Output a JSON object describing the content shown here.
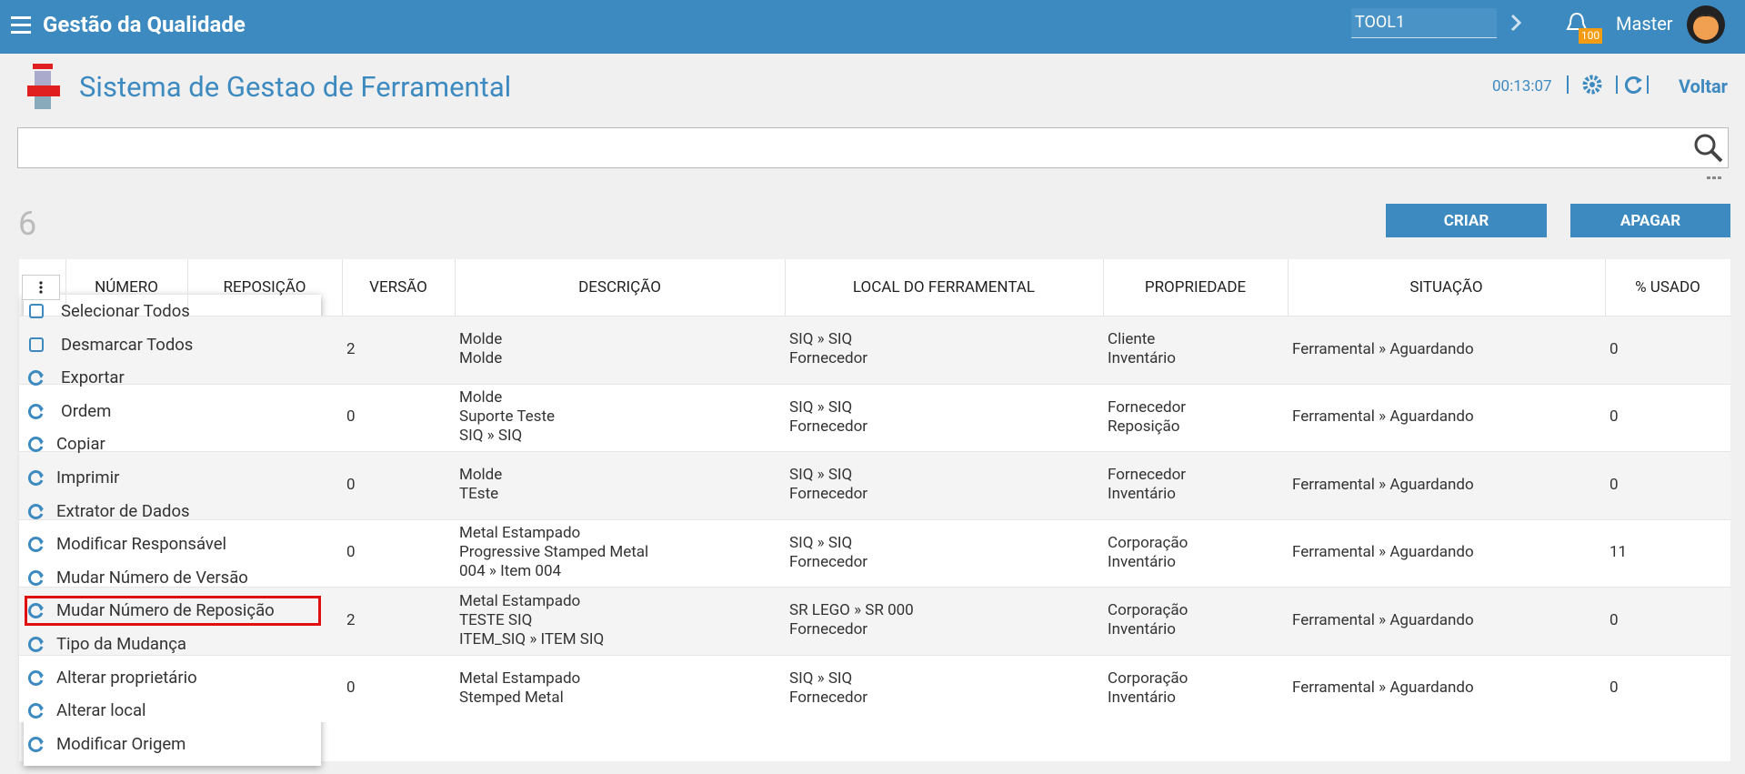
{
  "header": {
    "app_title": "Gestão da Qualidade",
    "tool_field": "TOOL1",
    "notification_count": "100",
    "user": "Master"
  },
  "page": {
    "title": "Sistema de Gestao de Ferramental",
    "timer": "00:13:07",
    "back": "Voltar"
  },
  "record_count": "6",
  "buttons": {
    "create": "CRIAR",
    "delete": "APAGAR"
  },
  "table": {
    "columns": [
      "NÚMERO",
      "REPOSIÇÃO",
      "VERSÃO",
      "DESCRIÇÃO",
      "LOCAL DO FERRAMENTAL",
      "PROPRIEDADE",
      "SITUAÇÃO",
      "% USADO"
    ],
    "rows": [
      {
        "versao": "2",
        "descricao": [
          "Molde",
          "Molde"
        ],
        "local": [
          "SIQ » SIQ",
          "Fornecedor"
        ],
        "propriedade": [
          "Cliente",
          "Inventário"
        ],
        "situacao": "Ferramental » Aguardando",
        "usado": "0"
      },
      {
        "versao": "0",
        "descricao": [
          "Molde",
          "Suporte Teste",
          "SIQ » SIQ"
        ],
        "local": [
          "SIQ » SIQ",
          "Fornecedor"
        ],
        "propriedade": [
          "Fornecedor",
          "Reposição"
        ],
        "situacao": "Ferramental » Aguardando",
        "usado": "0"
      },
      {
        "versao": "0",
        "descricao": [
          "Molde",
          "TEste"
        ],
        "local": [
          "SIQ » SIQ",
          "Fornecedor"
        ],
        "propriedade": [
          "Fornecedor",
          "Inventário"
        ],
        "situacao": "Ferramental » Aguardando",
        "usado": "0"
      },
      {
        "versao": "0",
        "descricao": [
          "Metal Estampado",
          "Progressive Stamped Metal",
          "004 » Item 004"
        ],
        "local": [
          "SIQ » SIQ",
          "Fornecedor"
        ],
        "propriedade": [
          "Corporação",
          "Inventário"
        ],
        "situacao": "Ferramental » Aguardando",
        "usado": "11"
      },
      {
        "versao": "2",
        "descricao": [
          "Metal Estampado",
          "TESTE SIQ",
          "ITEM_SIQ » ITEM SIQ"
        ],
        "local": [
          "SR LEGO » SR 000",
          "Fornecedor"
        ],
        "propriedade": [
          "Corporação",
          "Inventário"
        ],
        "situacao": "Ferramental » Aguardando",
        "usado": "0"
      },
      {
        "versao": "0",
        "descricao": [
          "Metal Estampado",
          "Stemped Metal"
        ],
        "local": [
          "SIQ » SIQ",
          "Fornecedor"
        ],
        "propriedade": [
          "Corporação",
          "Inventário"
        ],
        "situacao": "Ferramental » Aguardando",
        "usado": "0"
      }
    ]
  },
  "menu": {
    "items": [
      "Selecionar Todos",
      "Desmarcar Todos",
      "Exportar",
      "Ordem",
      "Copiar",
      "Imprimir",
      "Extrator de Dados",
      "Modificar Responsável",
      "Mudar Número de Versão",
      "Mudar Número de Reposição",
      "Tipo da Mudança",
      "Alterar proprietário",
      "Alterar local",
      "Modificar Origem"
    ],
    "highlighted": 9
  }
}
